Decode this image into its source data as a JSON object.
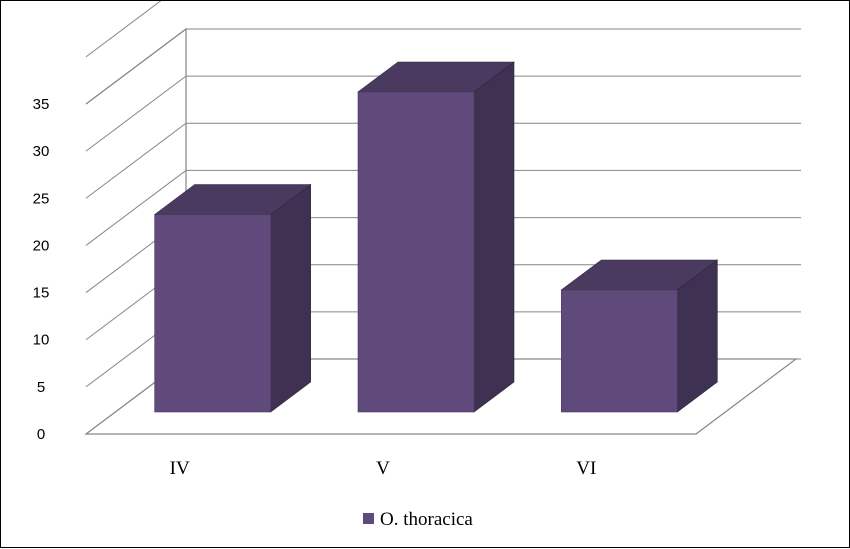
{
  "chart_data": {
    "type": "bar",
    "style": "3d-column",
    "categories": [
      "IV",
      "V",
      "VI"
    ],
    "series": [
      {
        "name": "O. thoracica",
        "values": [
          22,
          35,
          14
        ]
      }
    ],
    "ylim": [
      0,
      35
    ],
    "yticks": [
      0,
      5,
      10,
      15,
      20,
      25,
      30,
      35
    ],
    "grid": true,
    "legend": "bottom",
    "colors": {
      "front": "#604a7b",
      "top": "#4a3a60",
      "side": "#3f3151",
      "grid": "#868686"
    }
  }
}
